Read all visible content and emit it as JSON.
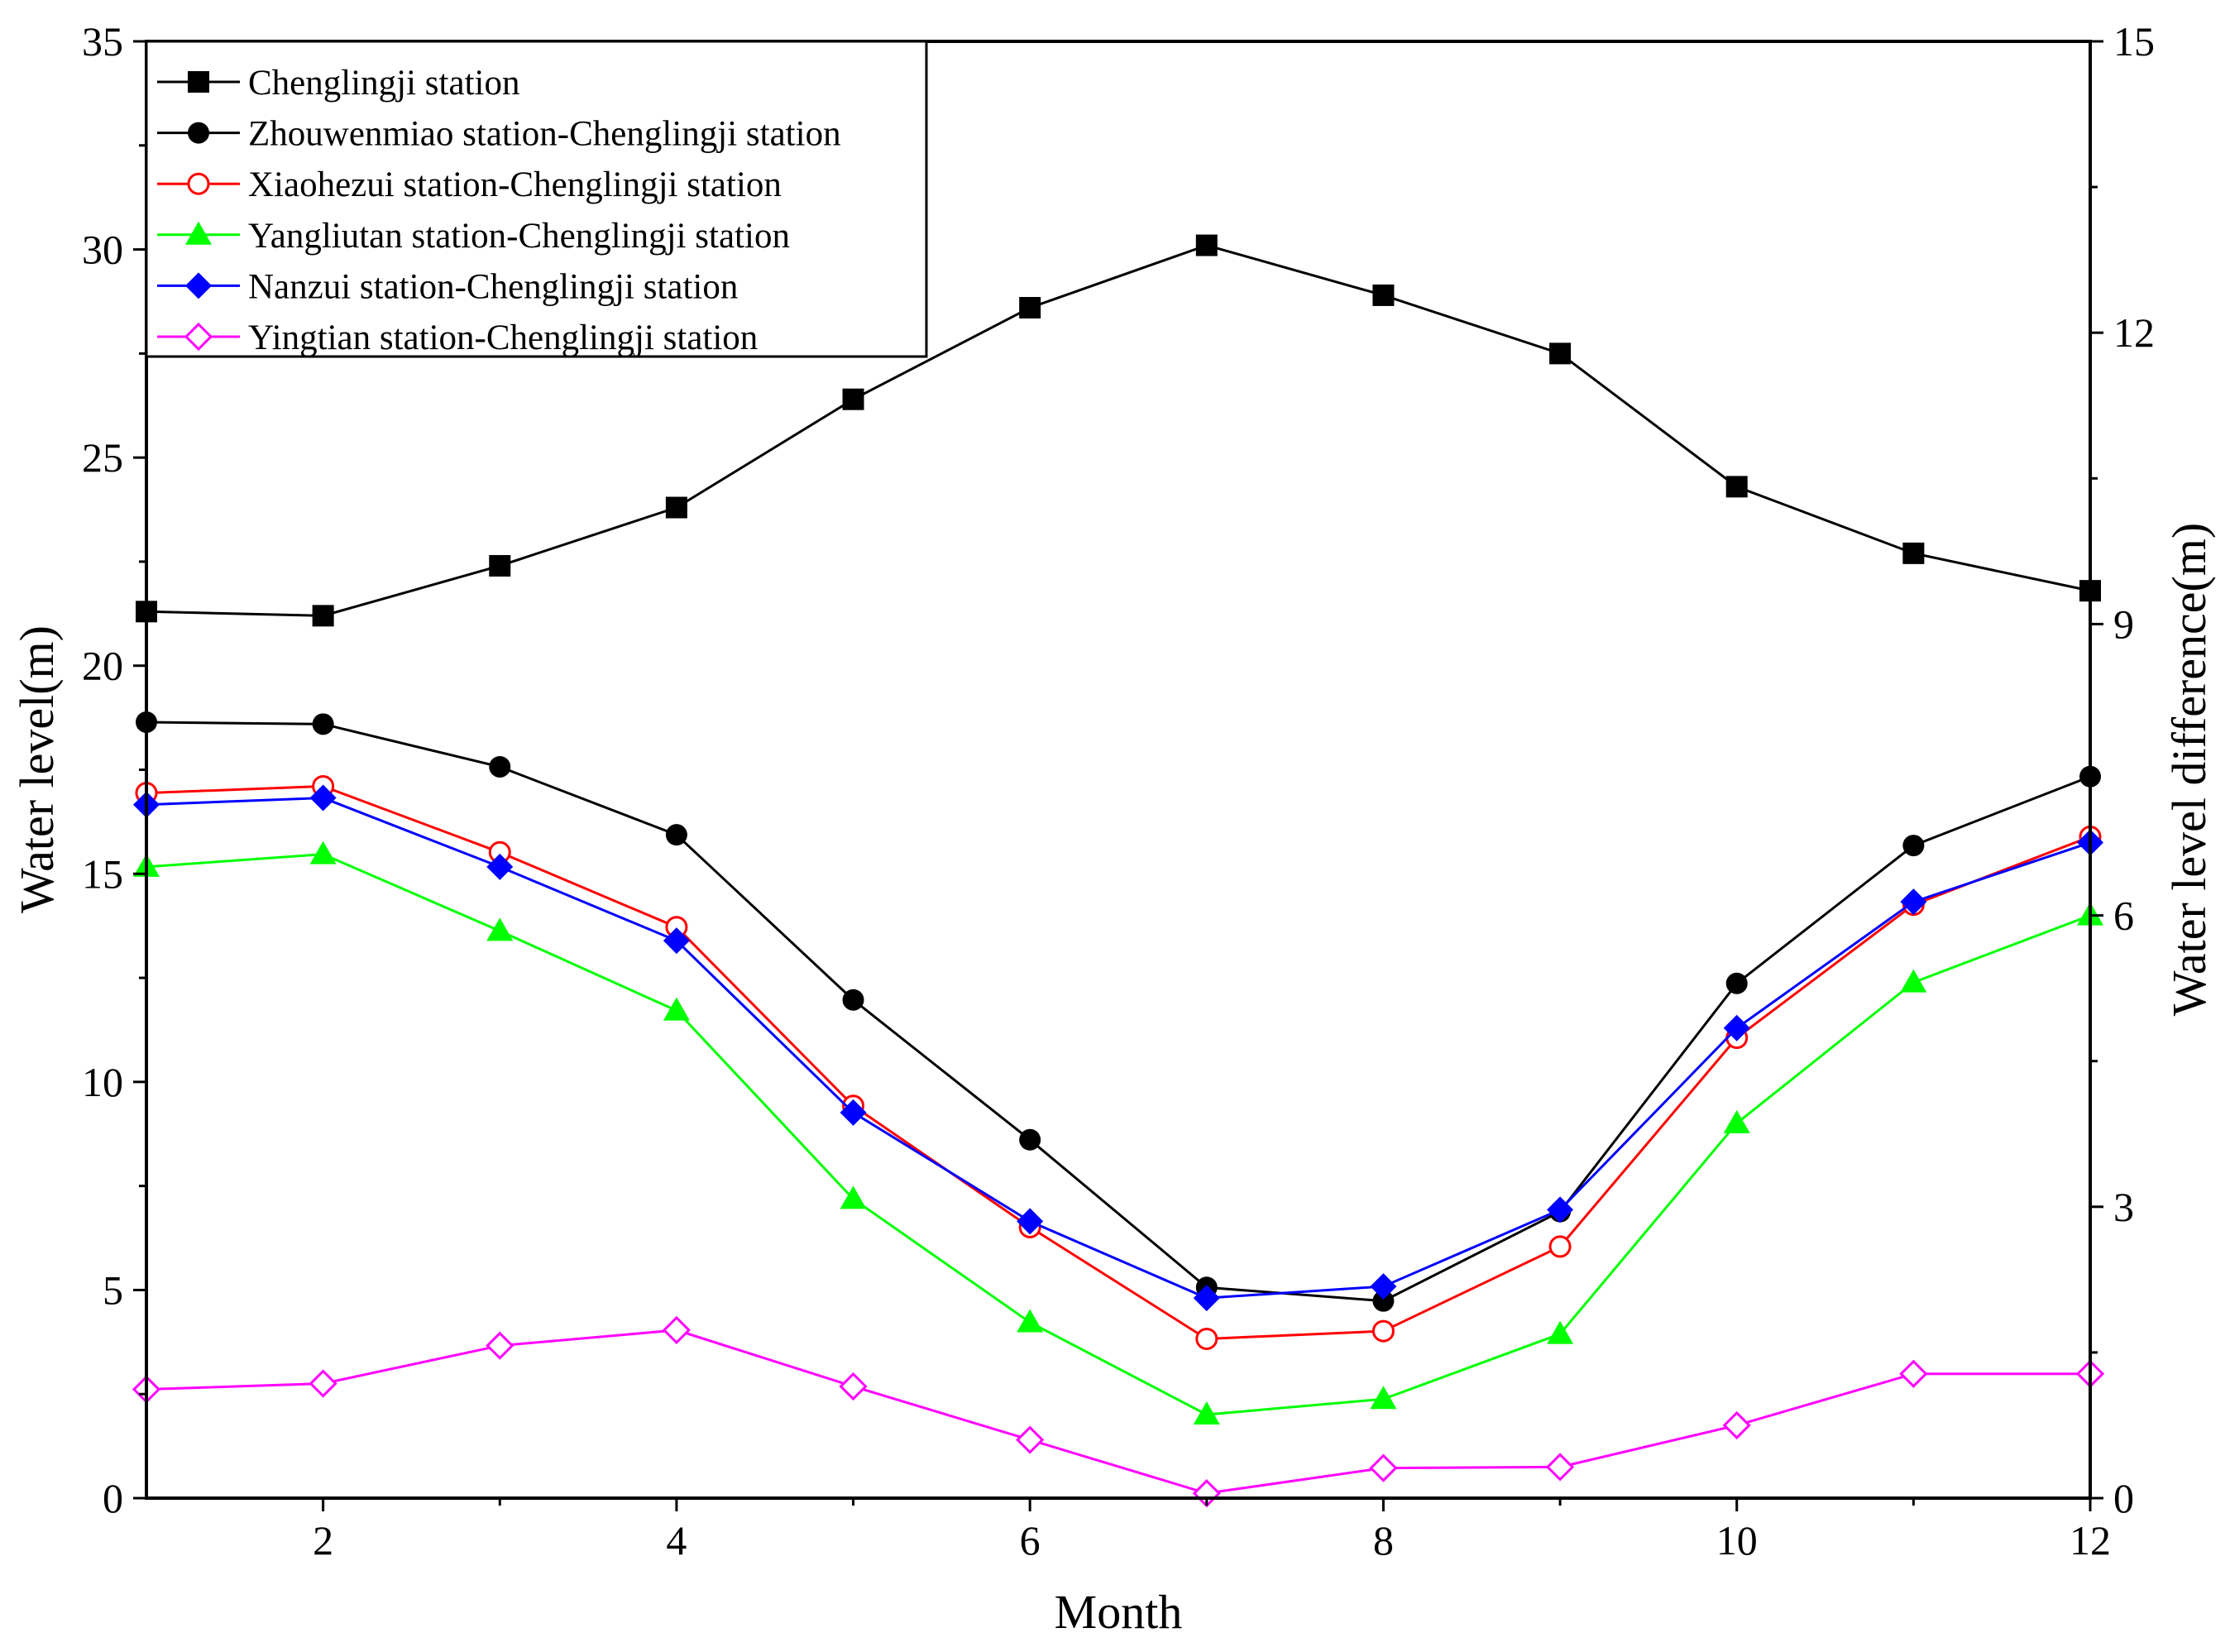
{
  "chart_data": {
    "type": "line",
    "title": "",
    "xlabel": "Month",
    "ylabel": "Water level(m)",
    "y2label": "Water level difference(m)",
    "xlim": [
      1,
      12
    ],
    "ylim": [
      0,
      35
    ],
    "y2lim": [
      0,
      15
    ],
    "x_ticks": [
      2,
      4,
      6,
      8,
      10,
      12
    ],
    "y_ticks": [
      0,
      5,
      10,
      15,
      20,
      25,
      30,
      35
    ],
    "y2_ticks": [
      0,
      3,
      6,
      9,
      12,
      15
    ],
    "grid": false,
    "legend_position": "top-left",
    "x": [
      1,
      2,
      3,
      4,
      5,
      6,
      7,
      8,
      9,
      10,
      11,
      12
    ],
    "series": [
      {
        "name": "Chenglingji station",
        "axis": "left",
        "color": "#000000",
        "marker": "square-filled",
        "values": [
          21.3,
          21.2,
          22.4,
          23.8,
          26.4,
          28.6,
          30.1,
          28.9,
          27.5,
          24.3,
          22.7,
          21.8
        ]
      },
      {
        "name": "Zhouwenmiao station-Chenglingji station",
        "axis": "right",
        "color": "#000000",
        "marker": "circle-filled",
        "values": [
          7.99,
          7.97,
          7.53,
          6.83,
          5.13,
          3.69,
          2.17,
          2.03,
          2.95,
          5.3,
          6.72,
          7.43
        ]
      },
      {
        "name": "Xiaohezui station-Chenglingji station",
        "axis": "right",
        "color": "#ff0000",
        "marker": "circle-open",
        "values": [
          7.26,
          7.33,
          6.65,
          5.88,
          4.04,
          2.79,
          1.64,
          1.72,
          2.59,
          4.74,
          6.11,
          6.81
        ]
      },
      {
        "name": "Yangliutan station-Chenglingji station",
        "axis": "right",
        "color": "#00ff00",
        "marker": "triangle-filled",
        "values": [
          6.5,
          6.63,
          5.84,
          5.02,
          3.08,
          1.81,
          0.86,
          1.02,
          1.69,
          3.86,
          5.31,
          6.0
        ]
      },
      {
        "name": "Nanzui station-Chenglingji station",
        "axis": "right",
        "color": "#0000ff",
        "marker": "diamond-filled",
        "values": [
          7.14,
          7.21,
          6.5,
          5.74,
          3.97,
          2.85,
          2.06,
          2.18,
          2.97,
          4.84,
          6.14,
          6.75
        ]
      },
      {
        "name": "Yingtian station-Chenglingji station",
        "axis": "right",
        "color": "#ff00ff",
        "marker": "diamond-open",
        "values": [
          1.12,
          1.18,
          1.57,
          1.73,
          1.15,
          0.6,
          0.05,
          0.31,
          0.32,
          0.75,
          1.28,
          1.28
        ]
      }
    ]
  }
}
